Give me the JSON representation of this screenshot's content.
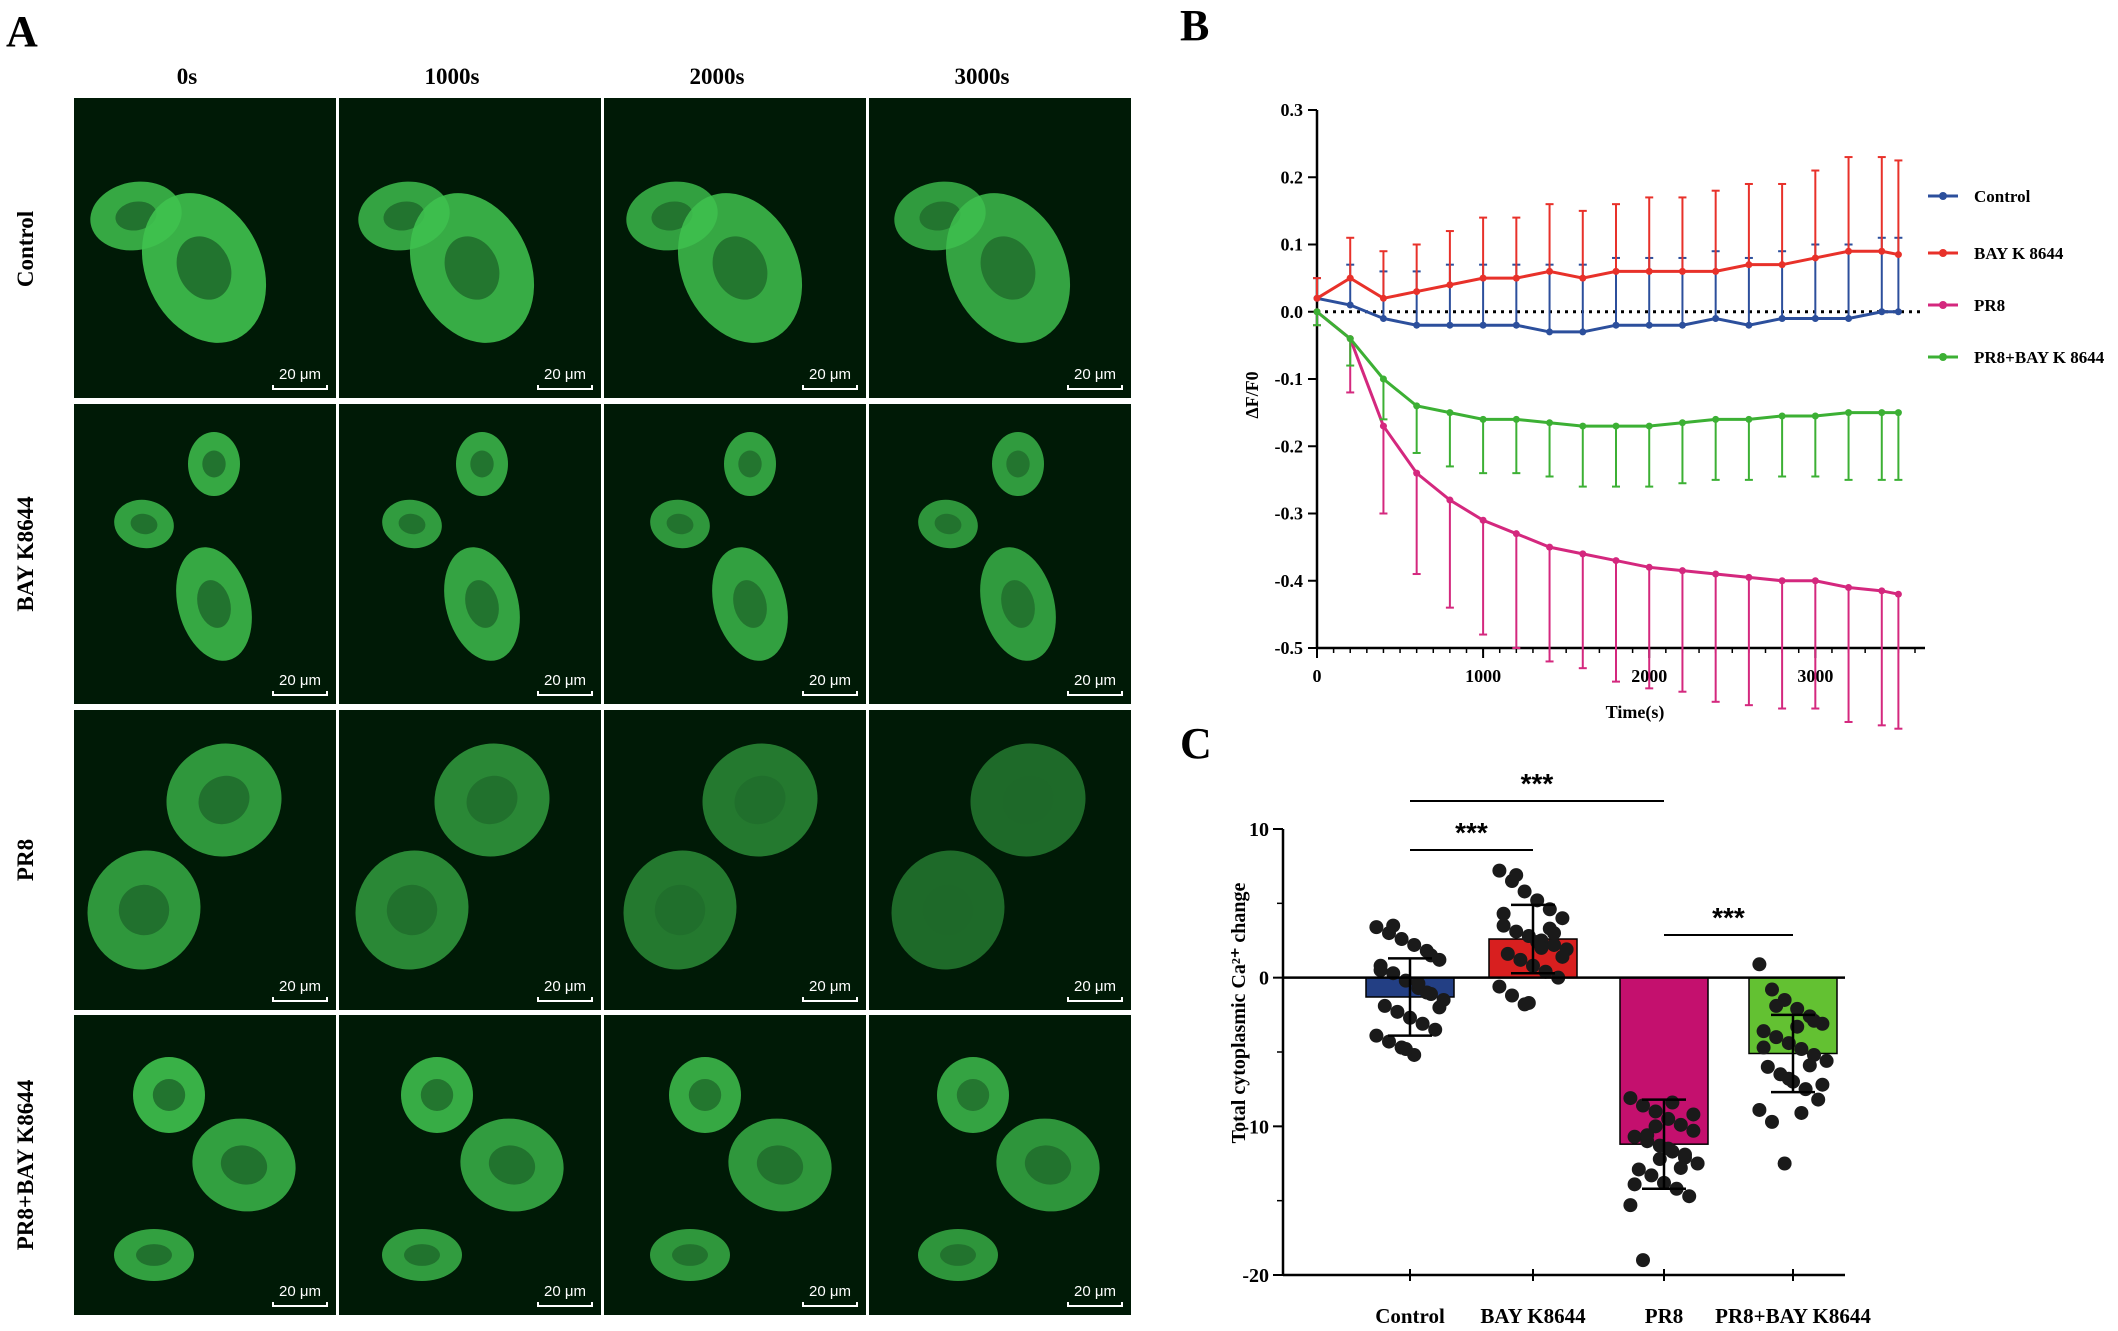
{
  "panels": {
    "a": "A",
    "b": "B",
    "c": "C"
  },
  "panel_a": {
    "columns": [
      "0s",
      "1000s",
      "2000s",
      "3000s"
    ],
    "rows": [
      "Control",
      "BAY K8644",
      "PR8",
      "PR8+BAY K8644"
    ],
    "scale_bar": "20 μm",
    "colors": {
      "background": "#001a06",
      "cells": "#3fc24f"
    }
  },
  "chart_data": [
    {
      "type": "line",
      "xlabel": "Time(s)",
      "ylabel": "ΔF/F0",
      "xlim": [
        0,
        3600
      ],
      "ylim": [
        -0.5,
        0.3
      ],
      "xticks": [
        "0",
        "1000",
        "2000",
        "3000"
      ],
      "yticks": [
        "0.3",
        "0.2",
        "0.1",
        "0.0",
        "-0.1",
        "-0.2",
        "-0.3",
        "-0.4",
        "-0.5"
      ],
      "x": [
        0,
        200,
        400,
        600,
        800,
        1000,
        1200,
        1400,
        1600,
        1800,
        2000,
        2200,
        2400,
        2600,
        2800,
        3000,
        3200,
        3400,
        3500
      ],
      "legend_position": "right",
      "series": [
        {
          "name": "Control",
          "color": "#2c4f9c",
          "values": [
            0.02,
            0.01,
            -0.01,
            -0.02,
            -0.02,
            -0.02,
            -0.02,
            -0.03,
            -0.03,
            -0.02,
            -0.02,
            -0.02,
            -0.01,
            -0.02,
            -0.01,
            -0.01,
            -0.01,
            0.0,
            0.0
          ],
          "error": [
            0.03,
            0.06,
            0.07,
            0.08,
            0.09,
            0.09,
            0.09,
            0.1,
            0.1,
            0.1,
            0.1,
            0.1,
            0.1,
            0.1,
            0.1,
            0.11,
            0.11,
            0.11,
            0.11
          ]
        },
        {
          "name": "BAY K 8644",
          "color": "#e8312a",
          "values": [
            0.02,
            0.05,
            0.02,
            0.03,
            0.04,
            0.05,
            0.05,
            0.06,
            0.05,
            0.06,
            0.06,
            0.06,
            0.06,
            0.07,
            0.07,
            0.08,
            0.09,
            0.09,
            0.085
          ],
          "error": [
            0.03,
            0.06,
            0.07,
            0.07,
            0.08,
            0.09,
            0.09,
            0.1,
            0.1,
            0.1,
            0.11,
            0.11,
            0.12,
            0.12,
            0.12,
            0.13,
            0.14,
            0.14,
            0.14
          ]
        },
        {
          "name": "PR8",
          "color": "#d4287e",
          "values": [
            0.0,
            -0.04,
            -0.17,
            -0.24,
            -0.28,
            -0.31,
            -0.33,
            -0.35,
            -0.36,
            -0.37,
            -0.38,
            -0.385,
            -0.39,
            -0.395,
            -0.4,
            -0.4,
            -0.41,
            -0.415,
            -0.42
          ],
          "error": [
            0.02,
            0.08,
            0.13,
            0.15,
            0.16,
            0.17,
            0.17,
            0.17,
            0.17,
            0.18,
            0.18,
            0.18,
            0.19,
            0.19,
            0.19,
            0.19,
            0.2,
            0.2,
            0.2
          ]
        },
        {
          "name": "PR8+BAY K 8644",
          "color": "#3cb034",
          "values": [
            0.0,
            -0.04,
            -0.1,
            -0.14,
            -0.15,
            -0.16,
            -0.16,
            -0.165,
            -0.17,
            -0.17,
            -0.17,
            -0.165,
            -0.16,
            -0.16,
            -0.155,
            -0.155,
            -0.15,
            -0.15,
            -0.15
          ],
          "error": [
            0.02,
            0.04,
            0.06,
            0.07,
            0.08,
            0.08,
            0.08,
            0.08,
            0.09,
            0.09,
            0.09,
            0.09,
            0.09,
            0.09,
            0.09,
            0.09,
            0.1,
            0.1,
            0.1
          ]
        }
      ]
    },
    {
      "type": "bar",
      "ylabel": "Total cytoplasmic  Ca²⁺ change",
      "ylim": [
        -20,
        10
      ],
      "yticks": [
        "10",
        "0",
        "-10",
        "-20"
      ],
      "categories": [
        "Control",
        "BAY K8644",
        "PR8",
        "PR8+BAY K8644"
      ],
      "values": [
        -1.3,
        2.6,
        -11.2,
        -5.1
      ],
      "error": [
        2.6,
        2.3,
        3.0,
        2.6
      ],
      "colors": [
        "#233f84",
        "#d81f1f",
        "#c4106e",
        "#63c132"
      ],
      "significance": [
        {
          "from": "Control",
          "to": "PR8",
          "label": "***"
        },
        {
          "from": "Control",
          "to": "BAY K8644",
          "label": "***"
        },
        {
          "from": "PR8",
          "to": "PR8+BAY K8644",
          "label": "***"
        }
      ],
      "points": [
        [
          3.4,
          3.0,
          2.6,
          2.2,
          1.8,
          1.2,
          0.8,
          0.3,
          -0.2,
          -0.7,
          -1.1,
          -1.5,
          -1.9,
          -2.3,
          -2.7,
          -3.1,
          -3.5,
          -3.9,
          -4.3,
          -4.7,
          -5.2,
          -1.0,
          -2.0,
          0.5,
          3.5,
          -4.8,
          -0.4,
          1.5
        ],
        [
          7.2,
          6.5,
          5.8,
          5.2,
          4.6,
          4.0,
          3.5,
          3.1,
          2.8,
          2.5,
          2.2,
          1.9,
          1.6,
          1.2,
          0.8,
          0.4,
          0.0,
          -0.6,
          -1.2,
          -1.8,
          2.4,
          3.3,
          1.4,
          4.3,
          6.9,
          -1.7,
          2.0,
          3.0
        ],
        [
          -8.1,
          -8.6,
          -9.0,
          -9.5,
          -9.9,
          -10.3,
          -10.7,
          -11.0,
          -11.3,
          -11.7,
          -12.1,
          -12.5,
          -12.9,
          -13.3,
          -13.8,
          -14.2,
          -14.7,
          -15.3,
          -19.0,
          -10.0,
          -11.5,
          -12.8,
          -9.2,
          -13.9,
          -10.6,
          -12.2,
          -8.4,
          -11.9
        ],
        [
          0.9,
          -0.8,
          -1.5,
          -2.1,
          -2.6,
          -3.1,
          -3.6,
          -4.0,
          -4.4,
          -4.8,
          -5.2,
          -5.6,
          -6.0,
          -6.5,
          -7.0,
          -7.5,
          -8.2,
          -8.9,
          -9.7,
          -12.5,
          -3.3,
          -5.9,
          -7.2,
          -4.7,
          -1.9,
          -6.8,
          -9.1,
          -2.9
        ]
      ]
    }
  ]
}
